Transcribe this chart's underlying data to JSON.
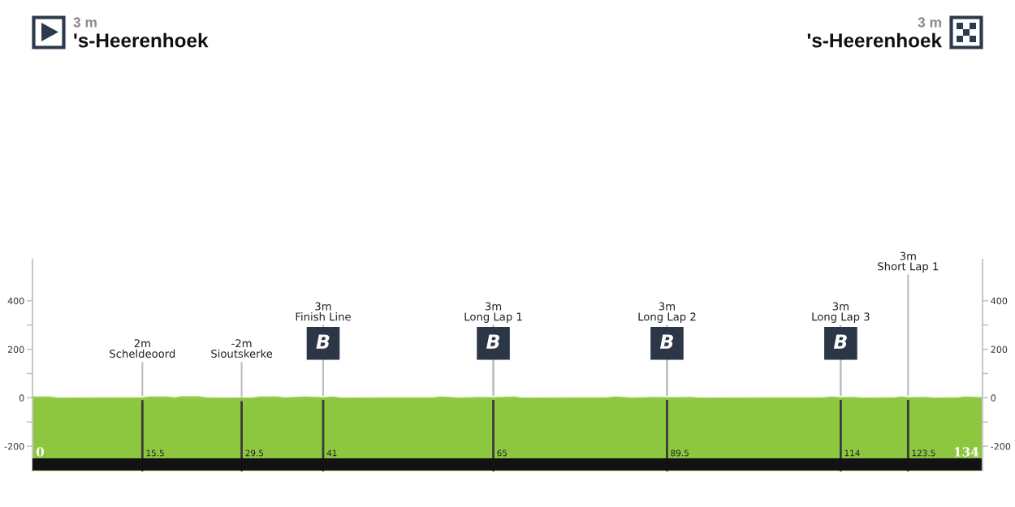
{
  "chart_data": {
    "type": "area",
    "x": [
      0,
      2.5,
      3.5,
      15.5,
      16.5,
      19,
      20,
      21,
      23.5,
      24.5,
      27.5,
      29.5,
      31,
      32,
      34.5,
      35.5,
      38.5,
      41,
      42.5,
      43.5,
      56.5,
      57.5,
      59,
      60,
      63,
      65,
      68,
      69,
      81,
      82,
      83.5,
      84.5,
      87.5,
      89.5,
      93,
      94,
      111.5,
      112.5,
      114,
      116,
      117,
      121.5,
      122.5,
      123.5,
      126,
      127,
      130.5,
      131.5,
      134
    ],
    "series": [
      {
        "color": "#8dc63f",
        "values": [
          5,
          5,
          1,
          2,
          5,
          5,
          2,
          6,
          6,
          2,
          0,
          -2,
          1,
          5,
          5,
          2,
          5,
          3,
          5,
          1,
          2,
          5,
          4,
          1,
          4,
          3,
          5,
          1,
          2,
          5,
          4,
          1,
          4,
          3,
          4,
          1,
          2,
          5,
          3,
          4,
          1,
          2,
          5,
          3,
          4,
          1,
          2,
          5,
          3
        ]
      }
    ],
    "xlim": [
      0,
      134
    ],
    "ylim": [
      -300,
      570
    ],
    "yticks": [
      -200,
      {
        "value": -100,
        "label": null
      },
      0,
      {
        "value": 100,
        "label": null
      },
      200,
      {
        "value": 300,
        "label": null
      },
      400
    ],
    "y2lim": [
      -300,
      570
    ],
    "y2ticks": [
      -200,
      {
        "value": -100,
        "label": null
      },
      0,
      {
        "value": 100,
        "label": null
      },
      200,
      {
        "value": 300,
        "label": null
      },
      400
    ],
    "bands": [
      {
        "axis": "y",
        "from": -250,
        "to": 0,
        "color": "#8dc63f"
      },
      {
        "axis": "y",
        "from": -300,
        "to": -250,
        "color": "#121212"
      }
    ],
    "ref_lines": [
      {
        "axis": "x",
        "value": 15.5,
        "label": "15.5"
      },
      {
        "axis": "x",
        "value": 29.5,
        "label": "29.5"
      },
      {
        "axis": "x",
        "value": 41,
        "label": "41"
      },
      {
        "axis": "x",
        "value": 65,
        "label": "65"
      },
      {
        "axis": "x",
        "value": 89.5,
        "label": "89.5"
      },
      {
        "axis": "x",
        "value": 114,
        "label": "114"
      },
      {
        "axis": "x",
        "value": 123.5,
        "label": "123.5"
      }
    ],
    "annotations": [
      "3 m",
      "'s-Heerenhoek",
      "0",
      "3 m",
      "'s-Heerenhoek",
      "134",
      {
        "text": "2m\nScheldeoord",
        "x": 15.5,
        "y": 2
      },
      {
        "text": "-2m\nSioutskerke",
        "x": 29.5,
        "y": -2
      },
      {
        "text": "B",
        "x": 41,
        "y": 3
      },
      {
        "text": "3m\nFinish Line",
        "x": 41,
        "y": 3
      },
      {
        "text": "B",
        "x": 65,
        "y": 3
      },
      {
        "text": "3m\nLong Lap 1",
        "x": 65,
        "y": 3
      },
      {
        "text": "B",
        "x": 89.5,
        "y": 3
      },
      {
        "text": "3m\nLong Lap 2",
        "x": 89.5,
        "y": 3
      },
      {
        "text": "B",
        "x": 114,
        "y": 3
      },
      {
        "text": "3m\nLong Lap 3",
        "x": 114,
        "y": 3
      },
      {
        "text": "3m\nShort Lap 1",
        "x": 123.5,
        "y": 3
      }
    ]
  }
}
